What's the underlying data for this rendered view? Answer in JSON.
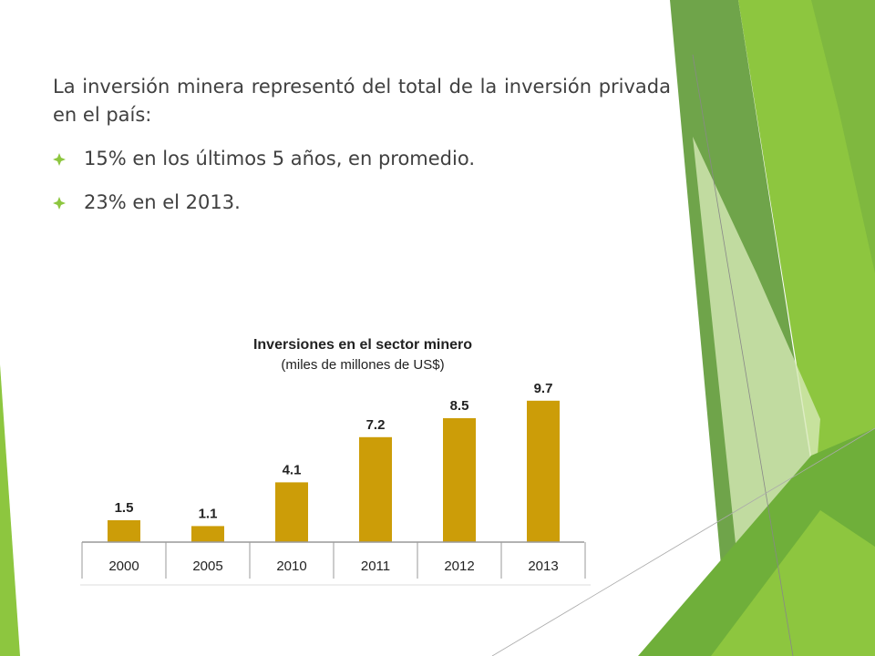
{
  "slide": {
    "intro": "La inversión minera representó del total de la inversión privada en el país:",
    "bullets": [
      "15% en los últimos 5 años, en promedio.",
      "23% en el 2013."
    ]
  },
  "colors": {
    "bar": "#CC9D08",
    "green_dark": "#5F9A36",
    "green_mid": "#7FB83F",
    "green_light": "#8DC63F",
    "green_pale": "#D6E8B5",
    "bullet_icon": "#8DC63F"
  },
  "chart_data": {
    "type": "bar",
    "title": "Inversiones en el sector minero",
    "subtitle": "(miles de millones de US$)",
    "categories": [
      "2000",
      "2005",
      "2010",
      "2011",
      "2012",
      "2013"
    ],
    "values": [
      1.5,
      1.1,
      4.1,
      7.2,
      8.5,
      9.7
    ],
    "data_labels": [
      "1.5",
      "1.1",
      "4.1",
      "7.2",
      "8.5",
      "9.7"
    ],
    "ylim": [
      0,
      10
    ],
    "grid": false,
    "legend": "none"
  }
}
